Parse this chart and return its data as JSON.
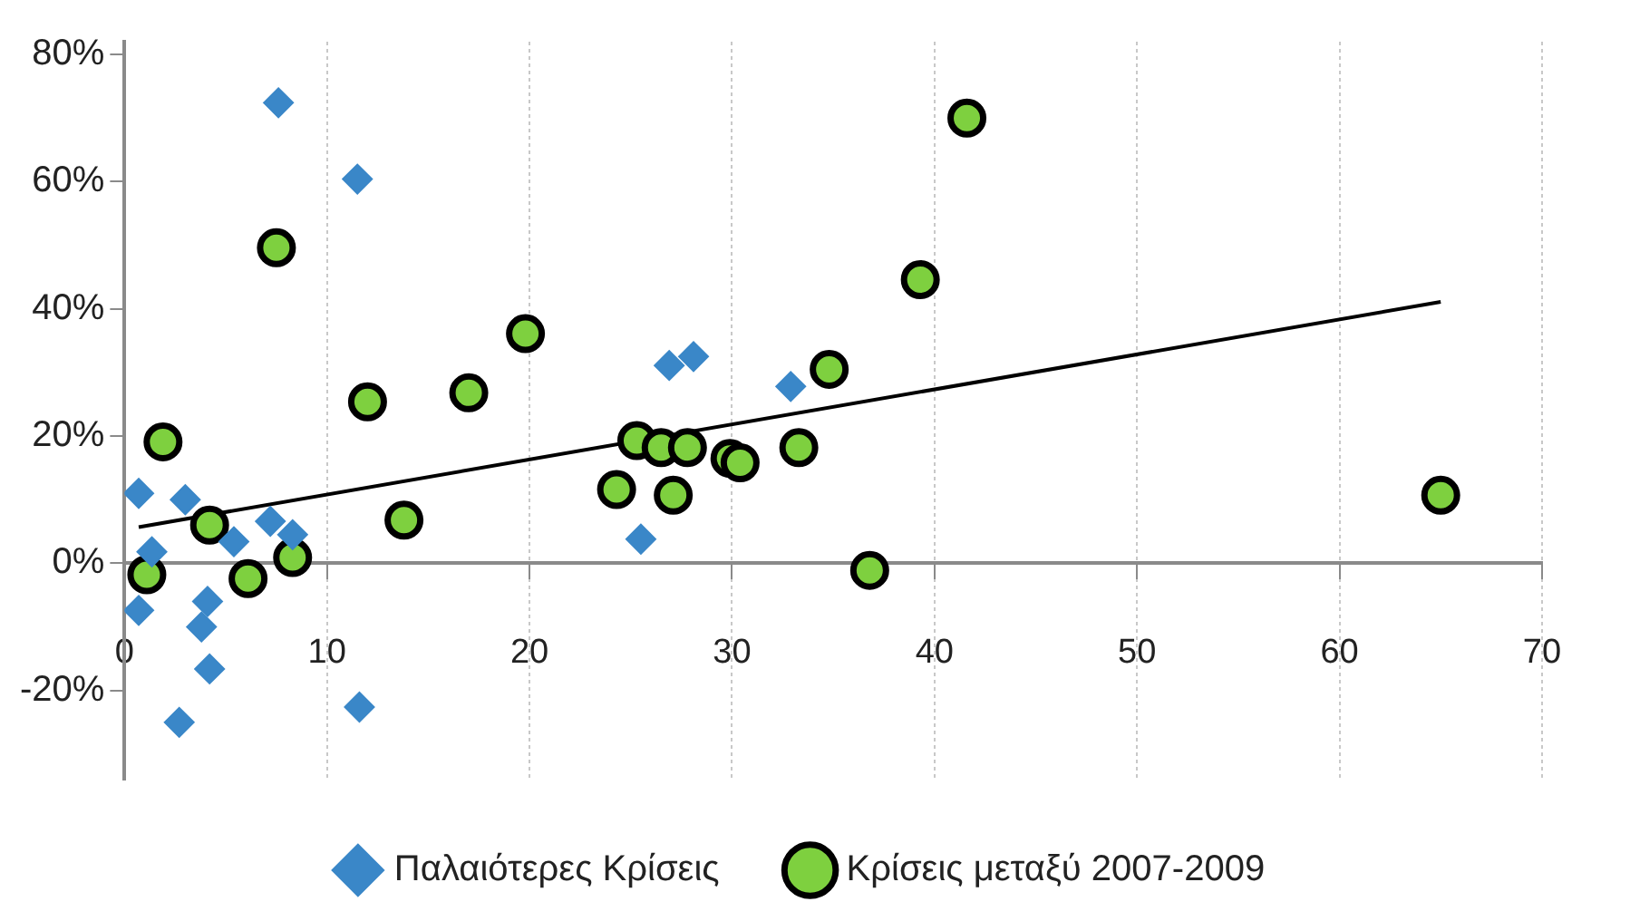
{
  "chart_data": {
    "type": "scatter",
    "xlim": [
      0,
      70
    ],
    "xticks": [
      0,
      10,
      20,
      30,
      40,
      50,
      60,
      70
    ],
    "ylim": [
      -34,
      82
    ],
    "yticks": [
      {
        "value": -20,
        "label": "-20%"
      },
      {
        "value": 0,
        "label": "0%"
      },
      {
        "value": 20,
        "label": "20%"
      },
      {
        "value": 40,
        "label": "40%"
      },
      {
        "value": 60,
        "label": "60%"
      },
      {
        "value": 80,
        "label": "80%"
      }
    ],
    "grid": "x",
    "legend": "bottom",
    "series": [
      {
        "name": "Παλαιότερες Κρίσεις",
        "type": "scatter",
        "marker": "diamond",
        "color": "#3a87c8",
        "x": [
          0.7,
          1.35,
          0.7,
          3.0,
          4.1,
          3.8,
          4.2,
          2.7,
          5.4,
          7.6,
          7.2,
          8.3,
          11.5,
          11.6,
          26.9,
          28.1,
          32.9,
          25.5
        ],
        "values": [
          11,
          1.8,
          -7.4,
          10,
          -6,
          -10,
          -16.6,
          -25,
          3.4,
          72.4,
          6.6,
          4.5,
          60.4,
          -22.6,
          31.1,
          32.5,
          27.8,
          3.8
        ]
      },
      {
        "name": "Κρίσεις μεταξύ 2007-2009",
        "type": "scatter",
        "marker": "circle",
        "color": "#7ed03f",
        "x": [
          1.1,
          1.9,
          4.2,
          6.1,
          8.3,
          7.5,
          12.0,
          13.8,
          17.0,
          19.8,
          24.3,
          25.3,
          26.5,
          27.8,
          27.1,
          29.9,
          30.4,
          33.3,
          34.8,
          36.8,
          39.3,
          41.6,
          65.0
        ],
        "values": [
          -1.8,
          19.1,
          6,
          -2.4,
          0.9,
          49.6,
          25.4,
          6.8,
          26.8,
          36.1,
          11.6,
          19.3,
          18.2,
          18.2,
          10.7,
          16.5,
          15.8,
          18.2,
          30.5,
          -1.1,
          44.6,
          70,
          10.7
        ]
      },
      {
        "type": "line",
        "marker": "none",
        "line_style": "solid",
        "color": "#000000",
        "x": [
          0.7,
          65
        ],
        "values": [
          5.7,
          41.1
        ]
      }
    ]
  }
}
